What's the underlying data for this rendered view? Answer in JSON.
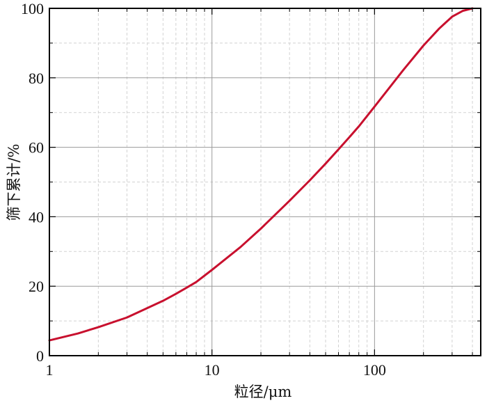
{
  "chart_data": {
    "type": "line",
    "xscale": "log",
    "xlim": [
      1,
      450
    ],
    "ylim": [
      0,
      100
    ],
    "xticks": [
      1,
      10,
      100
    ],
    "xtick_labels": [
      "1",
      "10",
      "100"
    ],
    "yticks": [
      0,
      20,
      40,
      60,
      80,
      100
    ],
    "ytick_labels": [
      "0",
      "20",
      "40",
      "60",
      "80",
      "100"
    ],
    "xlabel": "粒径/μm",
    "ylabel": "筛下累计/%",
    "grid": true,
    "line_color": "#c8102e",
    "series": [
      {
        "x": [
          1,
          1.5,
          2,
          3,
          4,
          5,
          6,
          7,
          8,
          10,
          15,
          20,
          30,
          40,
          50,
          60,
          70,
          80,
          100,
          150,
          200,
          250,
          300,
          350,
          400
        ],
        "y": [
          4.4,
          6.4,
          8.2,
          11.0,
          13.7,
          15.8,
          17.8,
          19.6,
          21.2,
          24.7,
          31.3,
          36.6,
          44.6,
          50.5,
          55.3,
          59.4,
          62.9,
          66.0,
          71.7,
          82.2,
          89.3,
          94.2,
          97.6,
          99.3,
          100.0
        ]
      }
    ]
  }
}
